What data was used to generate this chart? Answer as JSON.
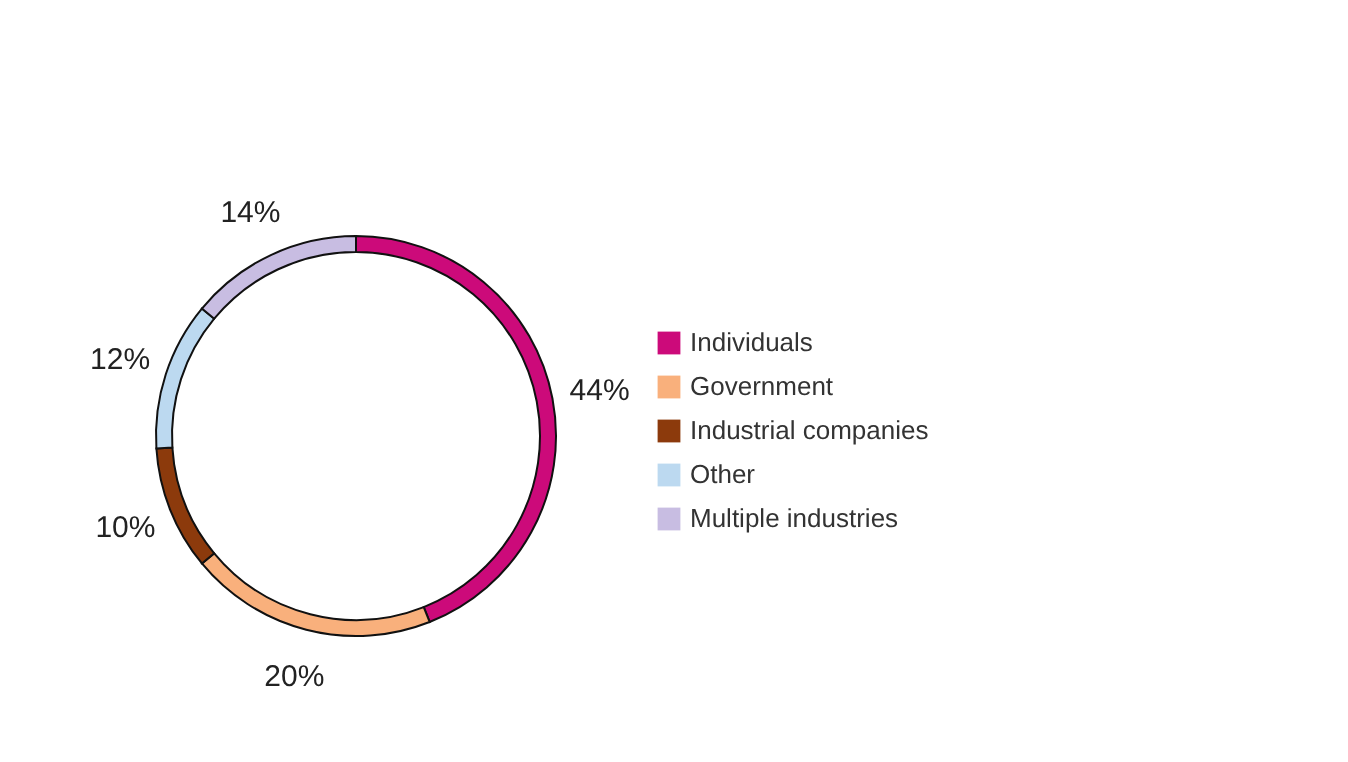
{
  "chart_data": {
    "type": "donut",
    "categories": [
      "Individuals",
      "Government",
      "Industrial companies",
      "Other",
      "Multiple industries"
    ],
    "values": [
      44,
      20,
      10,
      12,
      14
    ],
    "colors": [
      "#cc0a7a",
      "#f9b07c",
      "#8c3a0c",
      "#bcd9f0",
      "#c8bde2"
    ],
    "value_labels": [
      "44%",
      "20%",
      "10%",
      "12%",
      "14%"
    ],
    "legend": "right"
  }
}
